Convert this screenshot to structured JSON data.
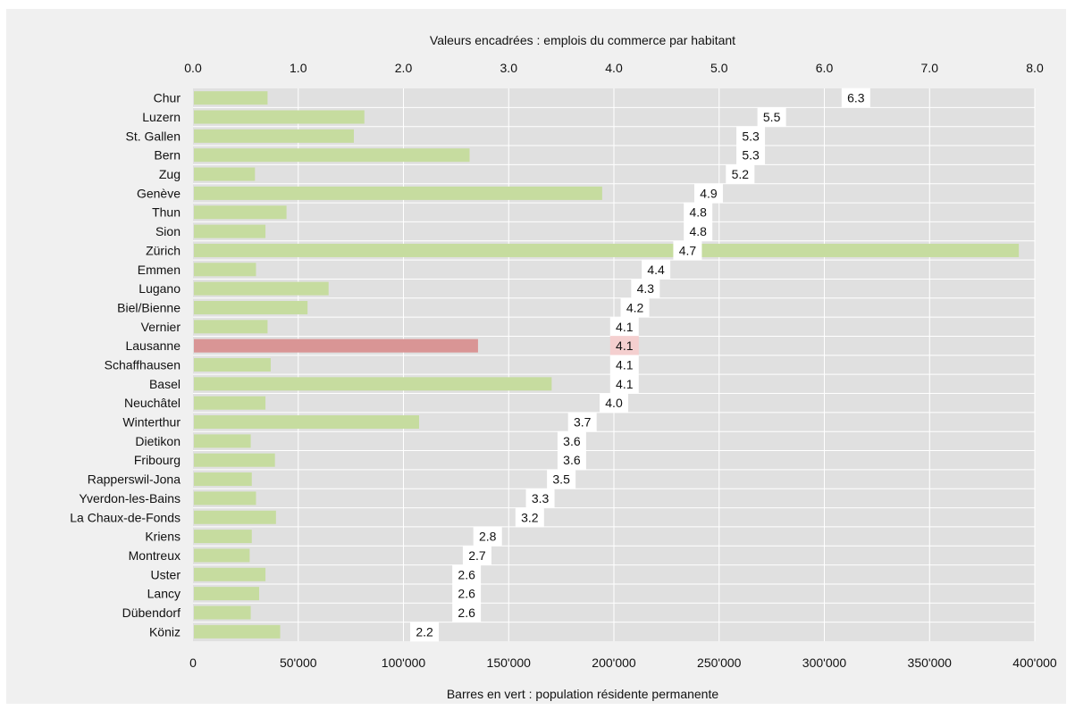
{
  "chart_data": {
    "type": "bar",
    "top_axis_title": "Valeurs encadrées : emplois du commerce par habitant",
    "bottom_axis_title": "Barres en vert : population résidente permanente",
    "top_axis": {
      "min": 0.0,
      "max": 8.0,
      "ticks": [
        "0.0",
        "1.0",
        "2.0",
        "3.0",
        "4.0",
        "5.0",
        "6.0",
        "7.0",
        "8.0"
      ]
    },
    "bottom_axis": {
      "min": 0,
      "max": 400000,
      "ticks": [
        "0",
        "50'000",
        "100'000",
        "150'000",
        "200'000",
        "250'000",
        "300'000",
        "350'000",
        "400'000"
      ]
    },
    "grid": true,
    "colors": {
      "background": "#e0e0e0",
      "frame": "#f0f0f0",
      "bar": "#c6dc9f",
      "highlight_bar": "#d99595",
      "highlight_label_bg": "#f4cfcf",
      "label_bg": "#ffffff"
    },
    "highlight": "Lausanne",
    "categories": [
      "Chur",
      "Luzern",
      "St. Gallen",
      "Bern",
      "Zug",
      "Genève",
      "Thun",
      "Sion",
      "Zürich",
      "Emmen",
      "Lugano",
      "Biel/Bienne",
      "Vernier",
      "Lausanne",
      "Schaffhausen",
      "Basel",
      "Neuchâtel",
      "Winterthur",
      "Dietikon",
      "Fribourg",
      "Rapperswil-Jona",
      "Yverdon-les-Bains",
      "La Chaux-de-Fonds",
      "Kriens",
      "Montreux",
      "Uster",
      "Lancy",
      "Dübendorf",
      "Köniz"
    ],
    "series": [
      {
        "name": "population résidente permanente",
        "values": [
          35000,
          81000,
          76000,
          131000,
          29000,
          194000,
          44000,
          34000,
          392000,
          29500,
          64000,
          54000,
          35000,
          135000,
          36500,
          170000,
          34000,
          107000,
          27000,
          38500,
          27500,
          29500,
          39000,
          27500,
          26500,
          34000,
          31000,
          27000,
          41000
        ]
      },
      {
        "name": "emplois du commerce par habitant",
        "values": [
          6.3,
          5.5,
          5.3,
          5.3,
          5.2,
          4.9,
          4.8,
          4.8,
          4.7,
          4.4,
          4.3,
          4.2,
          4.1,
          4.1,
          4.1,
          4.1,
          4.0,
          3.7,
          3.6,
          3.6,
          3.5,
          3.3,
          3.2,
          2.8,
          2.7,
          2.6,
          2.6,
          2.6,
          2.2
        ]
      }
    ]
  }
}
